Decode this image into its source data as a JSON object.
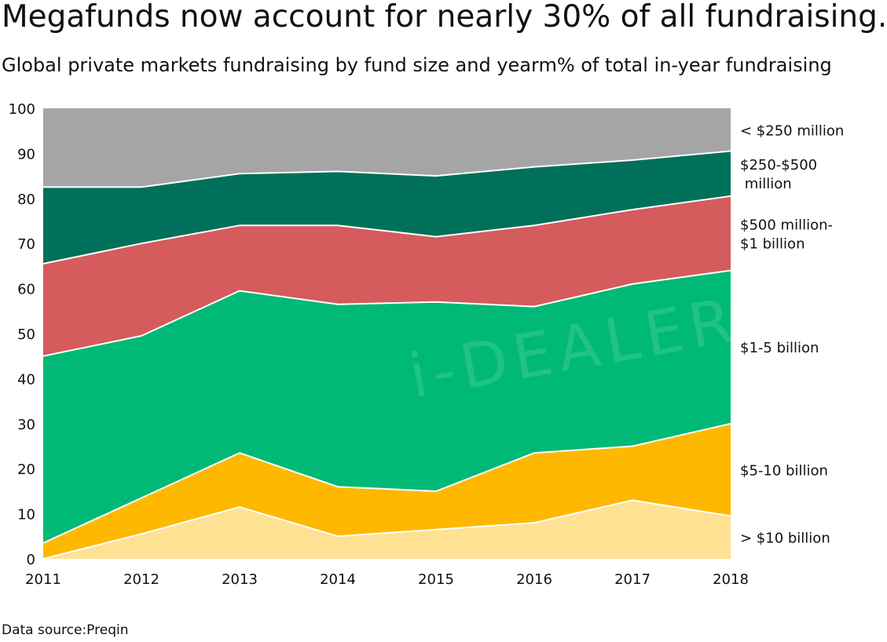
{
  "title": "Megafunds now account for nearly 30% of all fundraising.",
  "subtitle": "Global private markets fundraising by fund size and yearm% of total in-year fundraising",
  "source": "Data source:Preqin",
  "watermark": "i-DEALER",
  "chart_data": {
    "type": "area",
    "stacked": true,
    "x": [
      "2011",
      "2012",
      "2013",
      "2014",
      "2015",
      "2016",
      "2017",
      "2018"
    ],
    "ylim": [
      0,
      100
    ],
    "yticks": [
      0,
      10,
      20,
      30,
      40,
      50,
      60,
      70,
      80,
      90,
      100
    ],
    "grid": false,
    "legend_placement": "right",
    "series": [
      {
        "name": "> $10 billion",
        "color": "#FFE194",
        "values": [
          0,
          5.5,
          11.5,
          5,
          6.5,
          8,
          13,
          9.5
        ]
      },
      {
        "name": "$5-10 billion",
        "color": "#FFB800",
        "values": [
          3.5,
          8,
          12,
          11,
          8.5,
          15.5,
          12,
          20.5
        ]
      },
      {
        "name": "$1-5 billion",
        "color": "#00B976",
        "values": [
          41.5,
          36,
          36,
          40.5,
          42,
          32.5,
          36,
          34
        ]
      },
      {
        "name": "$500 million-$1 billion",
        "color": "#D55B5C",
        "values": [
          20.5,
          20.5,
          14.5,
          17.5,
          14.5,
          18,
          16.5,
          16.5
        ]
      },
      {
        "name": "$250-$500 million",
        "color": "#00705B",
        "values": [
          17,
          12.5,
          11.5,
          12,
          13.5,
          13,
          11,
          10
        ]
      },
      {
        "name": "< $250 million",
        "color": "#A5A5A5",
        "values": [
          17.5,
          17.5,
          14.5,
          14,
          15,
          13,
          11.5,
          9.5
        ]
      }
    ],
    "legend_labels": [
      {
        "series": "< $250 million",
        "lines": [
          "< $250 million"
        ]
      },
      {
        "series": "$250-$500 million",
        "lines": [
          "$250-$500",
          " million"
        ]
      },
      {
        "series": "$500 million-$1 billion",
        "lines": [
          "$500 million-",
          "$1 billion"
        ]
      },
      {
        "series": "$1-5 billion",
        "lines": [
          "$1-5 billion"
        ]
      },
      {
        "series": "$5-10 billion",
        "lines": [
          "$5-10 billion"
        ]
      },
      {
        "series": "> $10 billion",
        "lines": [
          "> $10 billion"
        ]
      }
    ]
  }
}
